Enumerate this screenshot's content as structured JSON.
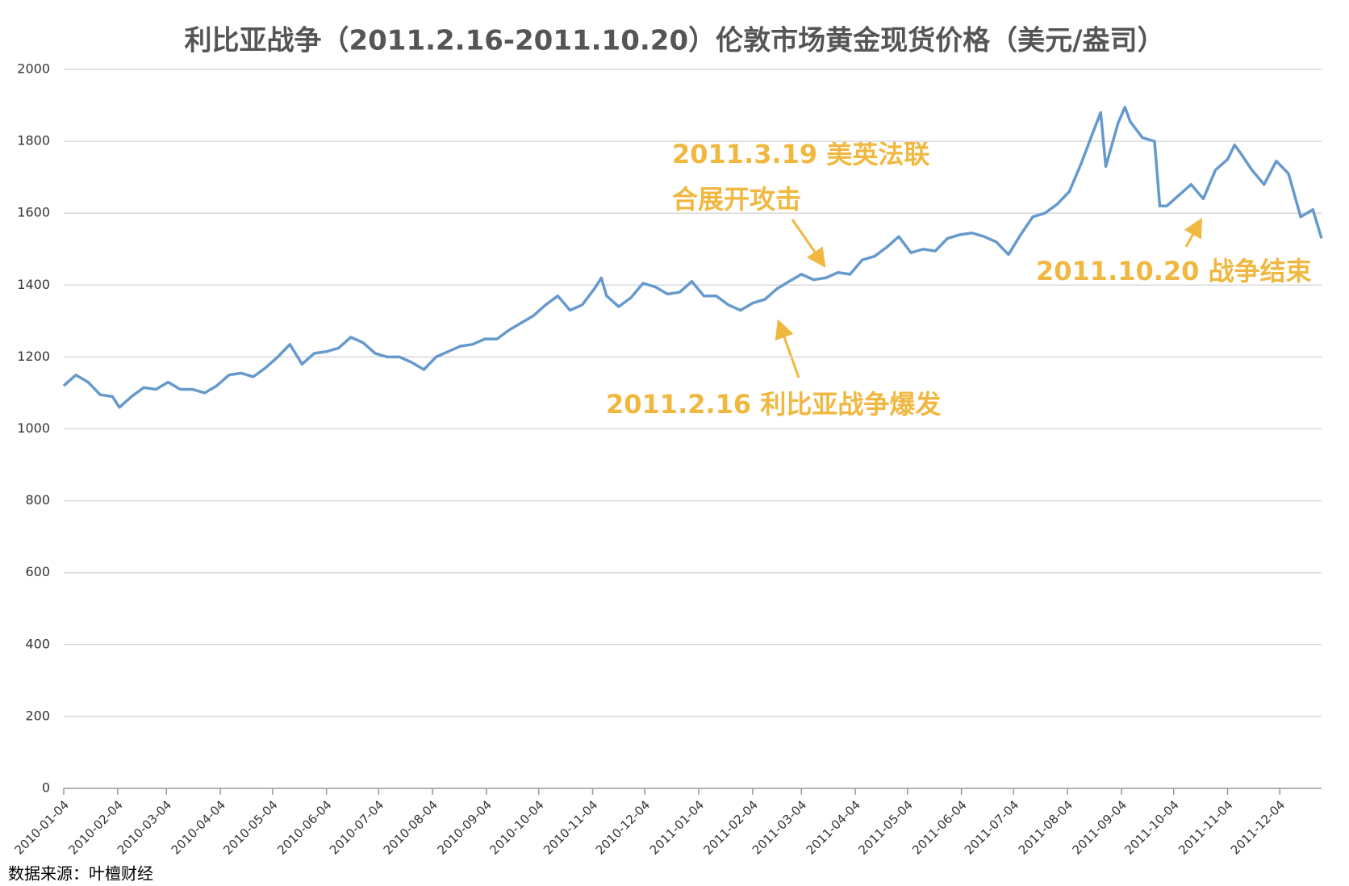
{
  "chart_data": {
    "type": "line",
    "title": "利比亚战争（2011.2.16-2011.10.20）伦敦市场黄金现货价格（美元/盎司）",
    "source": "数据来源：叶檀财经",
    "annotations": [
      {
        "lines": [
          "2011.3.19 美英法联",
          "合展开攻击"
        ]
      },
      {
        "lines": [
          "2011.2.16 利比亚战争爆发"
        ]
      },
      {
        "lines": [
          "2011.10.20 战争结束"
        ]
      }
    ],
    "x": [
      "2010-01-04",
      "2010-01-11",
      "2010-01-18",
      "2010-01-25",
      "2010-02-01",
      "2010-02-05",
      "2010-02-12",
      "2010-02-19",
      "2010-02-26",
      "2010-03-05",
      "2010-03-12",
      "2010-03-19",
      "2010-03-26",
      "2010-04-02",
      "2010-04-09",
      "2010-04-16",
      "2010-04-23",
      "2010-04-30",
      "2010-05-07",
      "2010-05-14",
      "2010-05-21",
      "2010-05-28",
      "2010-06-04",
      "2010-06-11",
      "2010-06-18",
      "2010-06-25",
      "2010-07-02",
      "2010-07-09",
      "2010-07-16",
      "2010-07-23",
      "2010-07-30",
      "2010-08-06",
      "2010-08-13",
      "2010-08-20",
      "2010-08-27",
      "2010-09-03",
      "2010-09-10",
      "2010-09-17",
      "2010-09-24",
      "2010-10-01",
      "2010-10-08",
      "2010-10-15",
      "2010-10-22",
      "2010-10-29",
      "2010-11-05",
      "2010-11-09",
      "2010-11-12",
      "2010-11-19",
      "2010-11-26",
      "2010-12-03",
      "2010-12-10",
      "2010-12-17",
      "2010-12-24",
      "2010-12-31",
      "2011-01-07",
      "2011-01-14",
      "2011-01-21",
      "2011-01-28",
      "2011-02-04",
      "2011-02-11",
      "2011-02-18",
      "2011-02-25",
      "2011-03-04",
      "2011-03-11",
      "2011-03-18",
      "2011-03-25",
      "2011-04-01",
      "2011-04-08",
      "2011-04-15",
      "2011-04-22",
      "2011-04-29",
      "2011-05-06",
      "2011-05-13",
      "2011-05-20",
      "2011-05-27",
      "2011-06-03",
      "2011-06-10",
      "2011-06-17",
      "2011-06-24",
      "2011-07-01",
      "2011-07-08",
      "2011-07-15",
      "2011-07-22",
      "2011-07-29",
      "2011-08-05",
      "2011-08-12",
      "2011-08-19",
      "2011-08-23",
      "2011-08-26",
      "2011-09-02",
      "2011-09-06",
      "2011-09-09",
      "2011-09-16",
      "2011-09-23",
      "2011-09-26",
      "2011-09-30",
      "2011-10-07",
      "2011-10-14",
      "2011-10-21",
      "2011-10-28",
      "2011-11-04",
      "2011-11-08",
      "2011-11-11",
      "2011-11-18",
      "2011-11-25",
      "2011-12-02",
      "2011-12-09",
      "2011-12-16",
      "2011-12-23",
      "2011-12-28"
    ],
    "series": [
      {
        "name": "黄金现货价格",
        "color": "#6699cc",
        "values": [
          1120,
          1150,
          1130,
          1095,
          1090,
          1060,
          1090,
          1115,
          1110,
          1130,
          1110,
          1110,
          1100,
          1120,
          1150,
          1155,
          1145,
          1170,
          1200,
          1235,
          1180,
          1210,
          1215,
          1225,
          1255,
          1240,
          1210,
          1200,
          1200,
          1185,
          1165,
          1200,
          1215,
          1230,
          1235,
          1250,
          1250,
          1275,
          1295,
          1315,
          1345,
          1370,
          1330,
          1345,
          1390,
          1420,
          1370,
          1340,
          1365,
          1405,
          1395,
          1375,
          1380,
          1410,
          1370,
          1370,
          1345,
          1330,
          1350,
          1360,
          1390,
          1410,
          1430,
          1415,
          1420,
          1435,
          1430,
          1470,
          1480,
          1505,
          1535,
          1490,
          1500,
          1495,
          1530,
          1540,
          1545,
          1535,
          1520,
          1485,
          1540,
          1590,
          1600,
          1625,
          1660,
          1740,
          1830,
          1880,
          1730,
          1850,
          1895,
          1855,
          1810,
          1800,
          1620,
          1620,
          1650,
          1680,
          1640,
          1720,
          1750,
          1790,
          1770,
          1720,
          1680,
          1745,
          1710,
          1590,
          1610,
          1530
        ]
      }
    ],
    "xlim": [
      "2010-01-04",
      "2011-12-28"
    ],
    "xticks": [
      "2010-01-04",
      "2010-02-04",
      "2010-03-04",
      "2010-04-04",
      "2010-05-04",
      "2010-06-04",
      "2010-07-04",
      "2010-08-04",
      "2010-09-04",
      "2010-10-04",
      "2010-11-04",
      "2010-12-04",
      "2011-01-04",
      "2011-02-04",
      "2011-03-04",
      "2011-04-04",
      "2011-05-04",
      "2011-06-04",
      "2011-07-04",
      "2011-08-04",
      "2011-09-04",
      "2011-10-04",
      "2011-11-04",
      "2011-12-04"
    ],
    "ylim": [
      0,
      2000
    ],
    "yticks": [
      0,
      200,
      400,
      600,
      800,
      1000,
      1200,
      1400,
      1600,
      1800,
      2000
    ],
    "grid": true
  }
}
